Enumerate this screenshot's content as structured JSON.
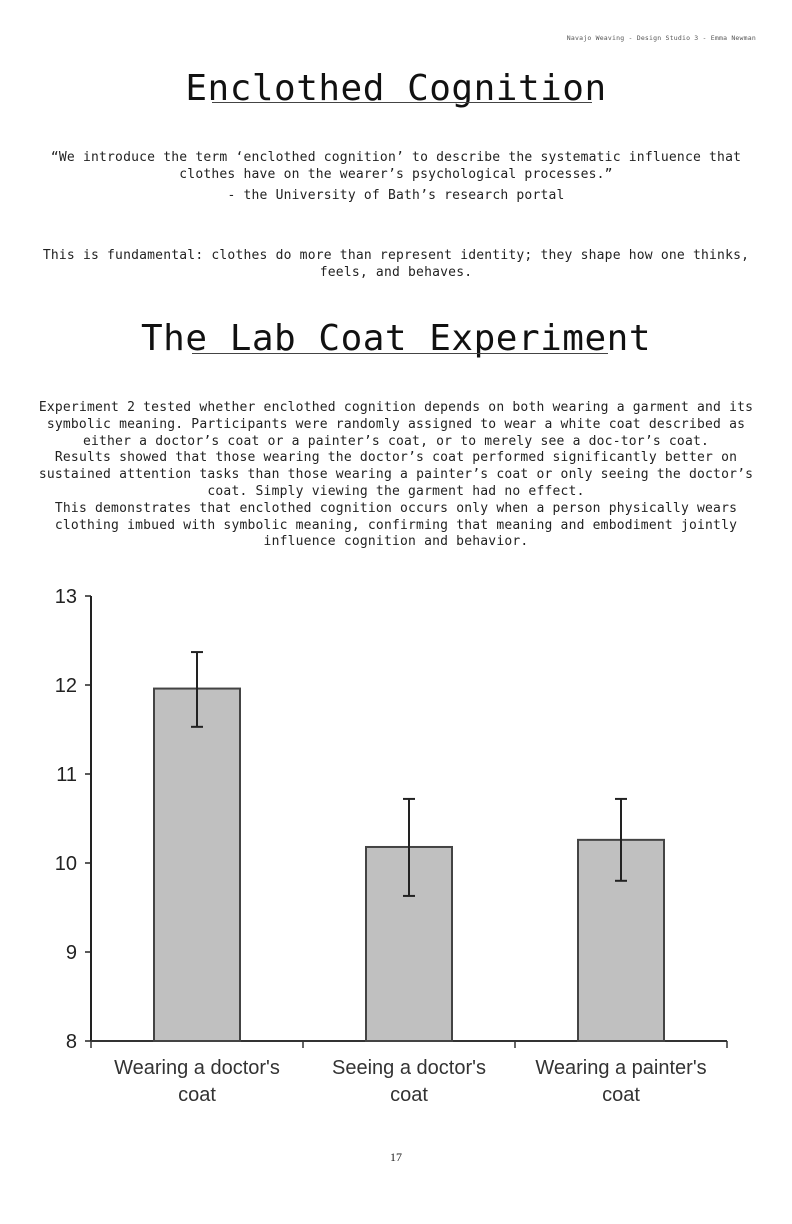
{
  "header": {
    "note": "Navajo Weaving - Design Studio 3 - Emma Newman"
  },
  "section1": {
    "title": "Enclothed Cognition",
    "quote": "“We introduce the term ‘enclothed cognition’ to describe the systematic influence that clothes have on the wearer’s psychological processes.”",
    "attribution": "- the University of Bath’s research portal",
    "statement": "This is fundamental: clothes do more than represent identity; they shape how one thinks, feels, and behaves."
  },
  "section2": {
    "title": "The Lab Coat Experiment",
    "paragraphs": [
      "Experiment 2 tested whether enclothed cognition depends on both wearing a garment and its symbolic meaning. Participants were randomly assigned to wear a white coat described as either a doctor’s coat or a painter’s coat, or to merely see a doc-tor’s coat.",
      "Results showed that those wearing the doctor’s coat performed significantly better on sustained attention tasks than those wearing a painter’s coat or only seeing the doctor’s coat. Simply viewing the garment had no effect.",
      "This demonstrates that enclothed cognition occurs only when a person physically wears clothing imbued with symbolic meaning, confirming that meaning and embodiment jointly influence cognition and behavior."
    ]
  },
  "chart_data": {
    "type": "bar",
    "title": "",
    "xlabel": "",
    "ylabel": "",
    "categories": [
      "Wearing a doctor's coat",
      "Seeing a doctor's coat",
      "Wearing a painter's coat"
    ],
    "category_lines": [
      [
        "Wearing a doctor's",
        "coat"
      ],
      [
        "Seeing a doctor's",
        "coat"
      ],
      [
        "Wearing a painter's",
        "coat"
      ]
    ],
    "values": [
      11.96,
      10.18,
      10.26
    ],
    "error_low": [
      11.53,
      9.63,
      9.8
    ],
    "error_high": [
      12.37,
      10.72,
      10.72
    ],
    "ylim": [
      8,
      13
    ],
    "yticks": [
      "8",
      "9",
      "10",
      "11",
      "12",
      "13"
    ],
    "grid": false,
    "legend": null,
    "bar_color": "#c0c0c0",
    "bar_edge_color": "#444444"
  },
  "footer": {
    "page_number": "17"
  }
}
